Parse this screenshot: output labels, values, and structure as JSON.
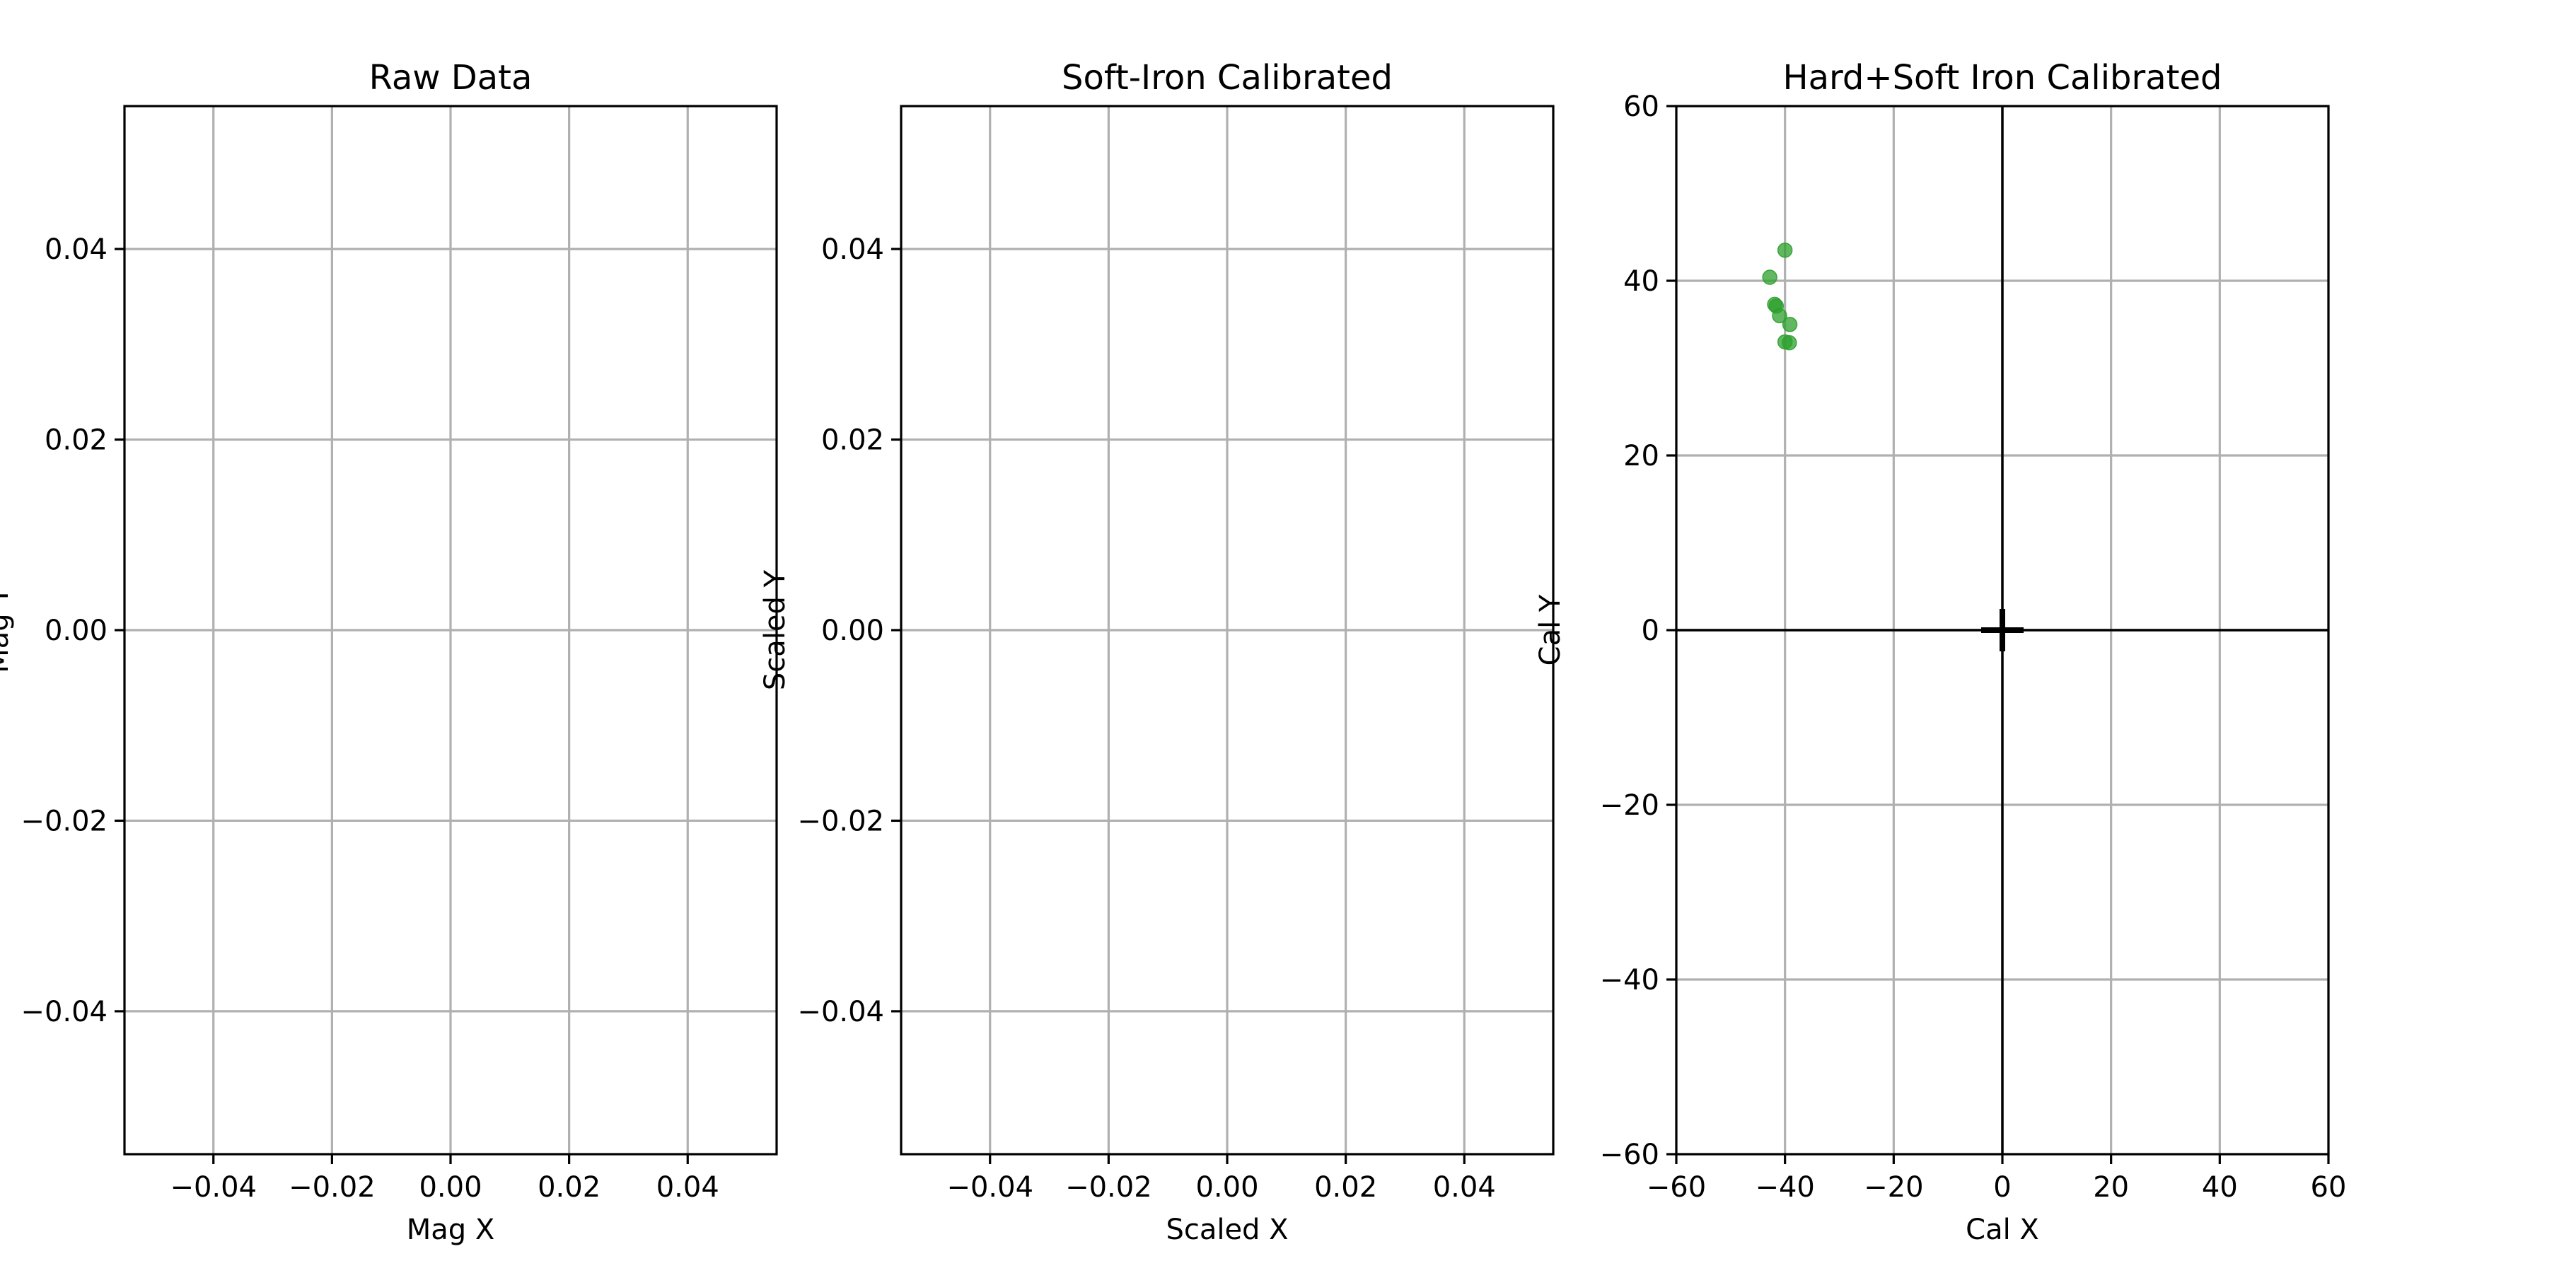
{
  "chart_data": [
    {
      "type": "scatter",
      "title": "Raw Data",
      "xlabel": "Mag X",
      "ylabel": "Mag Y",
      "xlim": [
        -0.055,
        0.055
      ],
      "ylim": [
        -0.055,
        0.055
      ],
      "xticks": [
        -0.04,
        -0.02,
        0.0,
        0.02,
        0.04
      ],
      "yticks": [
        -0.04,
        -0.02,
        0.0,
        0.02,
        0.04
      ],
      "xtick_labels": [
        "−0.04",
        "−0.02",
        "0.00",
        "0.02",
        "0.04"
      ],
      "ytick_labels": [
        "−0.04",
        "−0.02",
        "0.00",
        "0.02",
        "0.04"
      ],
      "grid": true,
      "points": []
    },
    {
      "type": "scatter",
      "title": "Soft-Iron Calibrated",
      "xlabel": "Scaled X",
      "ylabel": "Scaled Y",
      "xlim": [
        -0.055,
        0.055
      ],
      "ylim": [
        -0.055,
        0.055
      ],
      "xticks": [
        -0.04,
        -0.02,
        0.0,
        0.02,
        0.04
      ],
      "yticks": [
        -0.04,
        -0.02,
        0.0,
        0.02,
        0.04
      ],
      "xtick_labels": [
        "−0.04",
        "−0.02",
        "0.00",
        "0.02",
        "0.04"
      ],
      "ytick_labels": [
        "−0.04",
        "−0.02",
        "0.00",
        "0.02",
        "0.04"
      ],
      "grid": true,
      "points": []
    },
    {
      "type": "scatter",
      "title": "Hard+Soft Iron Calibrated",
      "xlabel": "Cal X",
      "ylabel": "Cal Y",
      "xlim": [
        -60,
        60
      ],
      "ylim": [
        -60,
        60
      ],
      "xticks": [
        -60,
        -40,
        -20,
        0,
        20,
        40,
        60
      ],
      "yticks": [
        -60,
        -40,
        -20,
        0,
        20,
        40,
        60
      ],
      "xtick_labels": [
        "−60",
        "−40",
        "−20",
        "0",
        "20",
        "40",
        "60"
      ],
      "ytick_labels": [
        "−60",
        "−40",
        "−20",
        "0",
        "20",
        "40",
        "60"
      ],
      "grid": true,
      "reference_lines": {
        "x0": true,
        "y0": true
      },
      "origin_marker": "plus",
      "point_color": "#2ca02c",
      "points": [
        {
          "x": -40.0,
          "y": 43.5
        },
        {
          "x": -42.8,
          "y": 40.4
        },
        {
          "x": -41.9,
          "y": 37.3
        },
        {
          "x": -41.6,
          "y": 37.1
        },
        {
          "x": -41.0,
          "y": 36.0
        },
        {
          "x": -39.1,
          "y": 35.0
        },
        {
          "x": -40.0,
          "y": 33.0
        },
        {
          "x": -39.2,
          "y": 32.9
        }
      ]
    }
  ]
}
